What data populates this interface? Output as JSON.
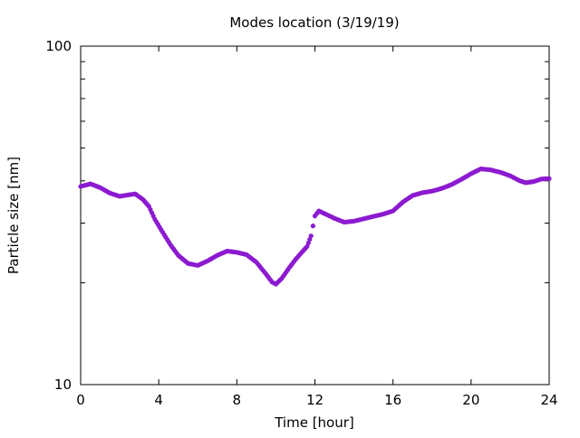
{
  "chart_data": {
    "type": "scatter",
    "title": "Modes location (3/19/19)",
    "xlabel": "Time [hour]",
    "ylabel": "Particle size [nm]",
    "xlim": [
      0,
      24
    ],
    "ylim": [
      10,
      100
    ],
    "yscale": "log",
    "xticks": [
      0,
      4,
      8,
      12,
      16,
      20,
      24
    ],
    "yticks_labeled": [
      10,
      100
    ],
    "yticks_minor": [
      20,
      30,
      40,
      50,
      60,
      70,
      80,
      90
    ],
    "grid": false,
    "legend": false,
    "marker_color": "#8c1ad0",
    "series": [
      {
        "points": [
          [
            0.0,
            38.5
          ],
          [
            0.5,
            39.2
          ],
          [
            1.0,
            38.2
          ],
          [
            1.5,
            36.8
          ],
          [
            2.0,
            36.0
          ],
          [
            2.5,
            36.4
          ],
          [
            2.8,
            36.6
          ],
          [
            3.2,
            35.2
          ],
          [
            3.5,
            33.6
          ],
          [
            3.8,
            30.8
          ],
          [
            4.2,
            28.2
          ],
          [
            4.6,
            25.9
          ],
          [
            5.0,
            24.1
          ],
          [
            5.5,
            22.8
          ],
          [
            6.0,
            22.5
          ],
          [
            6.5,
            23.2
          ],
          [
            7.0,
            24.1
          ],
          [
            7.5,
            24.8
          ],
          [
            8.0,
            24.6
          ],
          [
            8.5,
            24.2
          ],
          [
            9.0,
            23.0
          ],
          [
            9.5,
            21.2
          ],
          [
            9.8,
            20.1
          ],
          [
            10.0,
            19.8
          ],
          [
            10.3,
            20.6
          ],
          [
            10.7,
            22.2
          ],
          [
            11.0,
            23.4
          ],
          [
            11.3,
            24.5
          ],
          [
            11.6,
            25.6
          ],
          [
            11.8,
            27.5
          ],
          [
            12.0,
            31.5
          ],
          [
            12.2,
            32.6
          ],
          [
            12.6,
            31.8
          ],
          [
            13.0,
            31.0
          ],
          [
            13.5,
            30.2
          ],
          [
            14.0,
            30.4
          ],
          [
            14.5,
            30.9
          ],
          [
            15.0,
            31.4
          ],
          [
            15.5,
            31.9
          ],
          [
            16.0,
            32.6
          ],
          [
            16.5,
            34.6
          ],
          [
            17.0,
            36.2
          ],
          [
            17.5,
            36.9
          ],
          [
            18.0,
            37.3
          ],
          [
            18.5,
            38.0
          ],
          [
            19.0,
            39.0
          ],
          [
            19.5,
            40.4
          ],
          [
            20.0,
            42.0
          ],
          [
            20.5,
            43.4
          ],
          [
            21.0,
            43.1
          ],
          [
            21.5,
            42.4
          ],
          [
            22.0,
            41.4
          ],
          [
            22.5,
            40.0
          ],
          [
            22.8,
            39.5
          ],
          [
            23.2,
            39.8
          ],
          [
            23.6,
            40.5
          ],
          [
            24.0,
            40.6
          ]
        ]
      }
    ]
  }
}
